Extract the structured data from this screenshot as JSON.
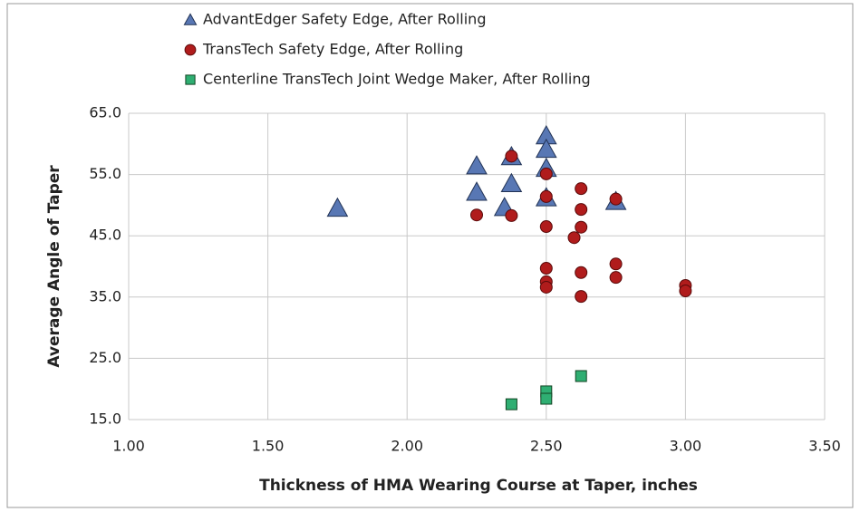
{
  "chart_data": {
    "type": "scatter",
    "xlabel": "Thickness of HMA Wearing Course at Taper, inches",
    "ylabel": "Average Angle of Taper",
    "xlim": [
      1.0,
      3.5
    ],
    "ylim": [
      15,
      65
    ],
    "xticks": [
      {
        "value": 1.0,
        "label": "1.00"
      },
      {
        "value": 1.5,
        "label": "1.50"
      },
      {
        "value": 2.0,
        "label": "2.00"
      },
      {
        "value": 2.5,
        "label": "2.50"
      },
      {
        "value": 3.0,
        "label": "3.00"
      },
      {
        "value": 3.5,
        "label": "3.50"
      }
    ],
    "yticks": [
      {
        "value": 15,
        "label": "15.0"
      },
      {
        "value": 25,
        "label": "25.0"
      },
      {
        "value": 35,
        "label": "35.0"
      },
      {
        "value": 45,
        "label": "45.0"
      },
      {
        "value": 55,
        "label": "55.0"
      },
      {
        "value": 65,
        "label": "65.0"
      }
    ],
    "grid": true,
    "legend": "top",
    "series": [
      {
        "name": "AdvantEdger Safety Edge, After Rolling",
        "color": "#5877b4",
        "marker": "triangle",
        "x": [
          1.75,
          2.25,
          2.25,
          2.375,
          2.375,
          2.35,
          2.5,
          2.5,
          2.5,
          2.5,
          2.75
        ],
        "values": [
          49.5,
          56.4,
          52.1,
          57.9,
          53.5,
          49.6,
          61.3,
          59.1,
          56,
          51.2,
          50.6
        ]
      },
      {
        "name": "TransTech Safety Edge, After Rolling",
        "color": "#b01c1c",
        "marker": "circle",
        "x": [
          2.25,
          2.375,
          2.375,
          2.5,
          2.5,
          2.5,
          2.5,
          2.5,
          2.5,
          2.625,
          2.625,
          2.625,
          2.6,
          2.625,
          2.625,
          2.75,
          2.75,
          2.75,
          3.0,
          3.0
        ],
        "values": [
          48.4,
          48.3,
          58,
          55.1,
          51.4,
          46.5,
          39.7,
          37.5,
          36.6,
          52.7,
          49.3,
          46.4,
          44.7,
          39,
          35.1,
          40.4,
          38.2,
          51,
          36.9,
          36
        ]
      },
      {
        "name": "Centerline TransTech Joint Wedge Maker, After Rolling",
        "color": "#2fae72",
        "marker": "square",
        "x": [
          2.375,
          2.5,
          2.5,
          2.625
        ],
        "values": [
          17.5,
          19.6,
          18.4,
          22.1
        ]
      }
    ]
  }
}
